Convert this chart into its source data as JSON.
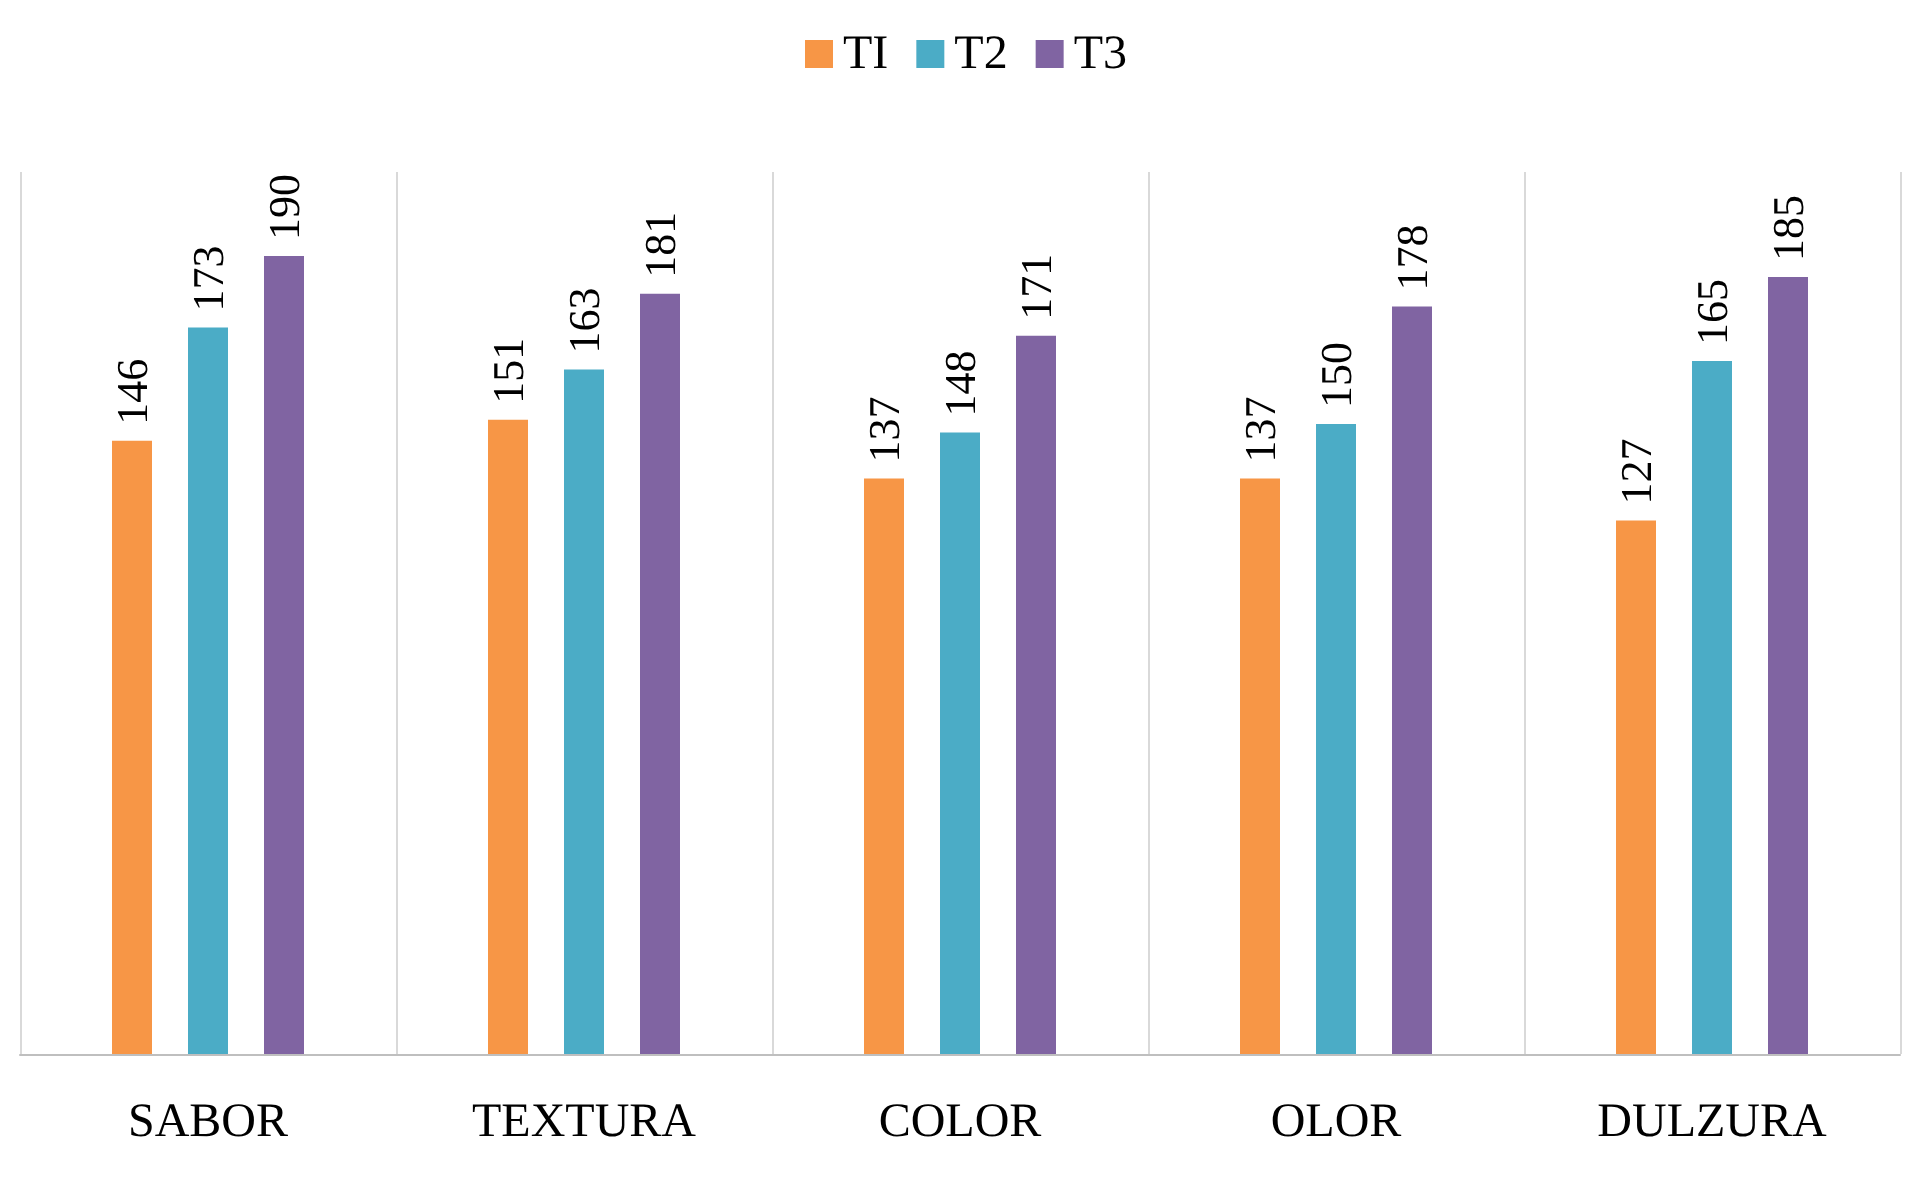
{
  "chart_data": {
    "type": "bar",
    "categories": [
      "SABOR",
      "TEXTURA",
      "COLOR",
      "OLOR",
      "DULZURA"
    ],
    "series": [
      {
        "name": "TI",
        "color": "#f79646",
        "values": [
          146,
          151,
          137,
          137,
          127
        ]
      },
      {
        "name": "T2",
        "color": "#4bacc6",
        "values": [
          173,
          163,
          148,
          150,
          165
        ]
      },
      {
        "name": "T3",
        "color": "#8064a2",
        "values": [
          190,
          181,
          171,
          178,
          185
        ]
      }
    ],
    "data_labels": true,
    "legend": "top",
    "grid": "x",
    "tick_labels": "x"
  }
}
